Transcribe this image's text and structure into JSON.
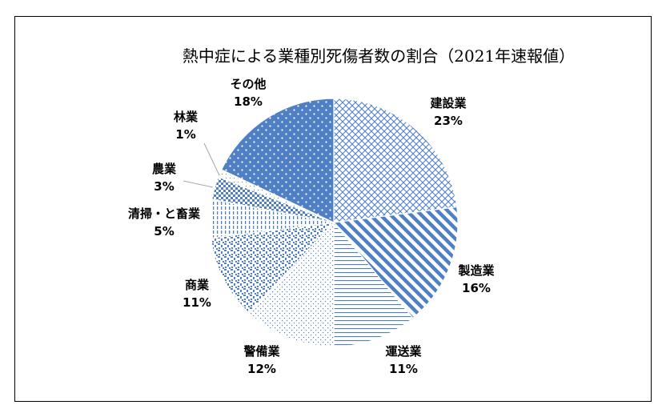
{
  "chart_data": {
    "type": "pie",
    "title": "熱中症による業種別死傷者数の割合（2021年速報値）",
    "start": "12 o'clock",
    "direction": "clockwise",
    "legend": "none",
    "slices": [
      {
        "name": "建設業",
        "value": 23,
        "label": "23%",
        "color": "#4f7fc4",
        "pattern": "diamond-lattice"
      },
      {
        "name": "製造業",
        "value": 16,
        "label": "16%",
        "color": "#4f7fc4",
        "pattern": "wide-diagonal"
      },
      {
        "name": "運送業",
        "value": 11,
        "label": "11%",
        "color": "#4f7fc4",
        "pattern": "horizontal-lines"
      },
      {
        "name": "警備業",
        "value": 12,
        "label": "12%",
        "color": "#4f7fc4",
        "pattern": "small-dots"
      },
      {
        "name": "商業",
        "value": 11,
        "label": "11%",
        "color": "#4f7fc4",
        "pattern": "confetti"
      },
      {
        "name": "清掃・と畜業",
        "value": 5,
        "label": "5%",
        "color": "#4f7fc4",
        "pattern": "vertical-dashes"
      },
      {
        "name": "農業",
        "value": 3,
        "label": "3%",
        "color": "#4f7fc4",
        "pattern": "checker"
      },
      {
        "name": "林業",
        "value": 1,
        "label": "1%",
        "color": "#4f7fc4",
        "pattern": "sparse-dots"
      },
      {
        "name": "その他",
        "value": 18,
        "label": "18%",
        "color": "#4f7fc4",
        "pattern": "solid-white-dots"
      }
    ]
  }
}
